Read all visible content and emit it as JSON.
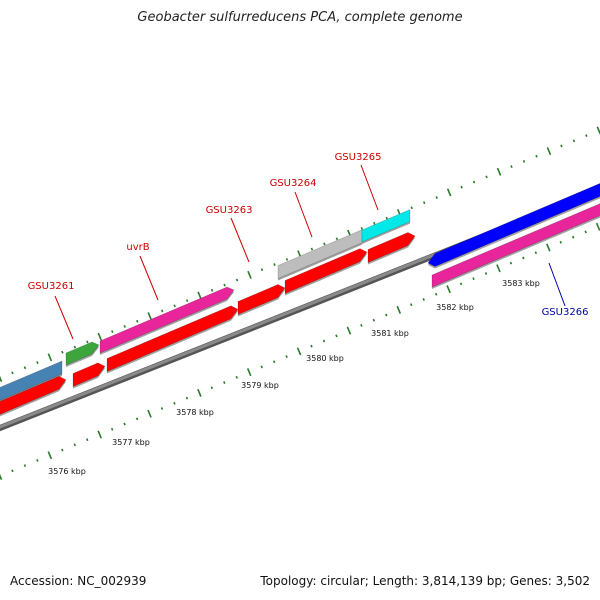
{
  "title": "Geobacter sulfurreducens PCA, complete genome",
  "footer": {
    "accession": "Accession: NC_002939",
    "summary": "Topology: circular; Length: 3,814,139 bp; Genes: 3,502"
  },
  "colors": {
    "backbone": "#8a8a8a",
    "tick": "#2a7a2a",
    "forward_label": "#cc0000",
    "reverse_label": "#0000aa"
  },
  "scale_labels": [
    {
      "text": "3576 kbp"
    },
    {
      "text": "3577 kbp"
    },
    {
      "text": "3578 kbp"
    },
    {
      "text": "3579 kbp"
    },
    {
      "text": "3580 kbp"
    },
    {
      "text": "3581 kbp"
    },
    {
      "text": "3582 kbp"
    },
    {
      "text": "3583 kbp"
    }
  ],
  "genes": [
    {
      "label": "GSU3261",
      "color": "#3ca53c"
    },
    {
      "label": "uvrB",
      "color": "#e8259a"
    },
    {
      "label": "GSU3263",
      "color": "#ff0000"
    },
    {
      "label": "GSU3264",
      "color": "#bdbdbd"
    },
    {
      "label": "GSU3265",
      "color": "#00e8e8"
    },
    {
      "label": "GSU3266",
      "color": "#0000ff"
    }
  ],
  "other_features": [
    {
      "name": "upstream-gene",
      "color": "#4682b4"
    },
    {
      "name": "cds",
      "color": "#ff0000"
    },
    {
      "name": "gene-3266-cds",
      "color": "#e8259a"
    }
  ]
}
